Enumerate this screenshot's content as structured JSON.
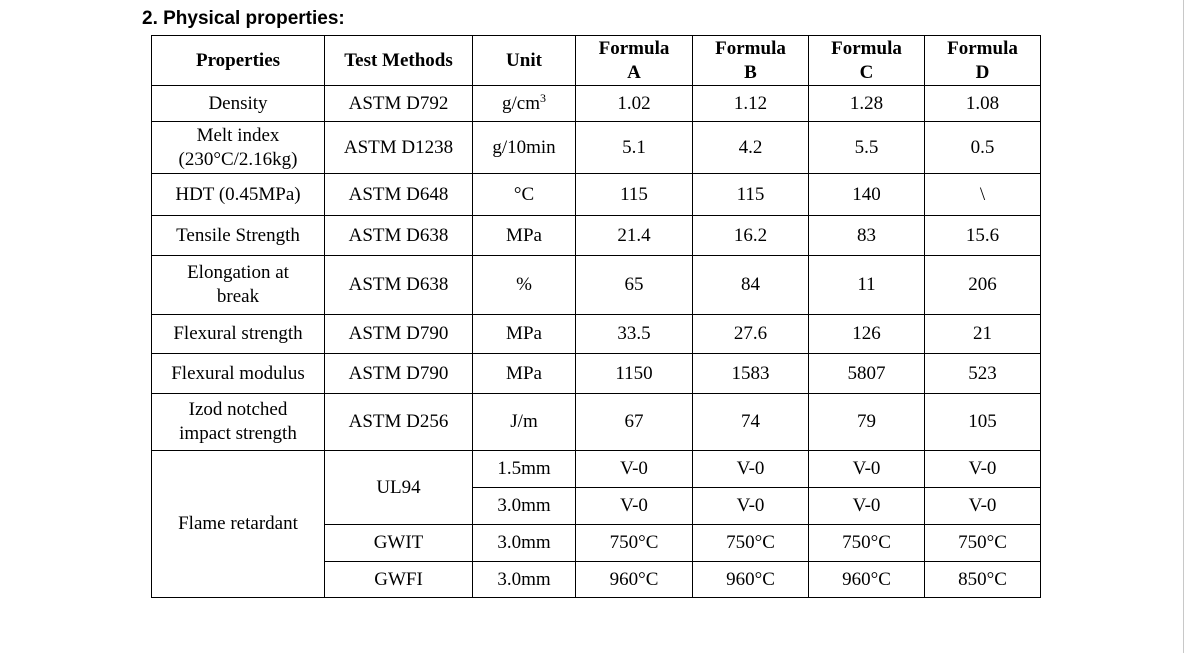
{
  "heading": "2. Physical properties:",
  "table": {
    "headers": {
      "properties": "Properties",
      "test_methods": "Test Methods",
      "unit": "Unit",
      "formula_a": [
        "Formula",
        "A"
      ],
      "formula_b": [
        "Formula",
        "B"
      ],
      "formula_c": [
        "Formula",
        "C"
      ],
      "formula_d": [
        "Formula",
        "D"
      ]
    },
    "rows": [
      {
        "property": [
          "Density"
        ],
        "method": "ASTM D792",
        "unit": "g/cm",
        "unit_sup": "3",
        "values": [
          "1.02",
          "1.12",
          "1.28",
          "1.08"
        ]
      },
      {
        "property": [
          "Melt index",
          "(230°C/2.16kg)"
        ],
        "method": "ASTM D1238",
        "unit": "g/10min",
        "values": [
          "5.1",
          "4.2",
          "5.5",
          "0.5"
        ]
      },
      {
        "property": [
          "HDT (0.45MPa)"
        ],
        "method": "ASTM D648",
        "unit": "°C",
        "values": [
          "115",
          "115",
          "140",
          "\\"
        ]
      },
      {
        "property": [
          "Tensile Strength"
        ],
        "method": "ASTM D638",
        "unit": "MPa",
        "values": [
          "21.4",
          "16.2",
          "83",
          "15.6"
        ]
      },
      {
        "property": [
          "Elongation at",
          "break"
        ],
        "method": "ASTM D638",
        "unit": "%",
        "values": [
          "65",
          "84",
          "11",
          "206"
        ]
      },
      {
        "property": [
          "Flexural strength"
        ],
        "method": "ASTM D790",
        "unit": "MPa",
        "values": [
          "33.5",
          "27.6",
          "126",
          "21"
        ]
      },
      {
        "property": [
          "Flexural modulus"
        ],
        "method": "ASTM D790",
        "unit": "MPa",
        "values": [
          "1150",
          "1583",
          "5807",
          "523"
        ]
      },
      {
        "property": [
          "Izod notched",
          "impact strength"
        ],
        "method": "ASTM D256",
        "unit": "J/m",
        "values": [
          "67",
          "74",
          "79",
          "105"
        ]
      }
    ],
    "flame": {
      "property": "Flame retardant",
      "ul94": {
        "method": "UL94",
        "rows": [
          {
            "unit": "1.5mm",
            "values": [
              "V-0",
              "V-0",
              "V-0",
              "V-0"
            ]
          },
          {
            "unit": "3.0mm",
            "values": [
              "V-0",
              "V-0",
              "V-0",
              "V-0"
            ]
          }
        ]
      },
      "gwit": {
        "method": "GWIT",
        "unit": "3.0mm",
        "values": [
          "750°C",
          "750°C",
          "750°C",
          "750°C"
        ]
      },
      "gwfi": {
        "method": "GWFI",
        "unit": "3.0mm",
        "values": [
          "960°C",
          "960°C",
          "960°C",
          "850°C"
        ]
      }
    }
  }
}
